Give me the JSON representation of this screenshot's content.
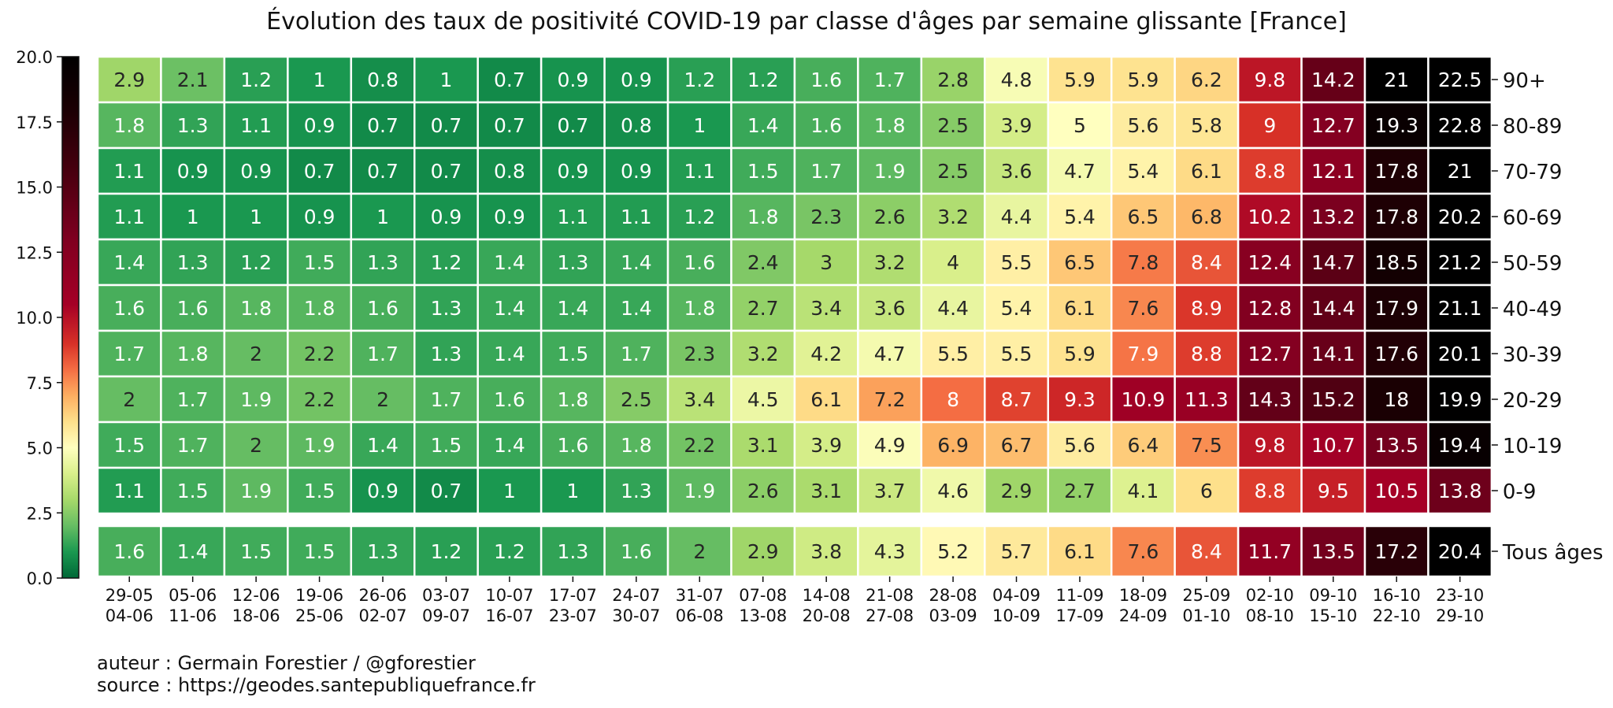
{
  "chart_data": {
    "type": "heatmap",
    "title": "Évolution des taux de positivité COVID-19 par classe d'âges par semaine glissante [France]",
    "x_ticks": [
      [
        "29-05",
        "04-06"
      ],
      [
        "05-06",
        "11-06"
      ],
      [
        "12-06",
        "18-06"
      ],
      [
        "19-06",
        "25-06"
      ],
      [
        "26-06",
        "02-07"
      ],
      [
        "03-07",
        "09-07"
      ],
      [
        "10-07",
        "16-07"
      ],
      [
        "17-07",
        "23-07"
      ],
      [
        "24-07",
        "30-07"
      ],
      [
        "31-07",
        "06-08"
      ],
      [
        "07-08",
        "13-08"
      ],
      [
        "14-08",
        "20-08"
      ],
      [
        "21-08",
        "27-08"
      ],
      [
        "28-08",
        "03-09"
      ],
      [
        "04-09",
        "10-09"
      ],
      [
        "11-09",
        "17-09"
      ],
      [
        "18-09",
        "24-09"
      ],
      [
        "25-09",
        "01-10"
      ],
      [
        "02-10",
        "08-10"
      ],
      [
        "09-10",
        "15-10"
      ],
      [
        "16-10",
        "22-10"
      ],
      [
        "23-10",
        "29-10"
      ]
    ],
    "rows": [
      {
        "label": "90+",
        "values": [
          2.9,
          2.1,
          1.2,
          1,
          0.8,
          1,
          0.7,
          0.9,
          0.9,
          1.2,
          1.2,
          1.6,
          1.7,
          2.8,
          4.8,
          5.9,
          5.9,
          6.2,
          9.8,
          14.2,
          21,
          22.5
        ]
      },
      {
        "label": "80-89",
        "values": [
          1.8,
          1.3,
          1.1,
          0.9,
          0.7,
          0.7,
          0.7,
          0.7,
          0.8,
          1,
          1.4,
          1.6,
          1.8,
          2.5,
          3.9,
          5,
          5.6,
          5.8,
          9,
          12.7,
          19.3,
          22.8
        ]
      },
      {
        "label": "70-79",
        "values": [
          1.1,
          0.9,
          0.9,
          0.7,
          0.7,
          0.7,
          0.8,
          0.9,
          0.9,
          1.1,
          1.5,
          1.7,
          1.9,
          2.5,
          3.6,
          4.7,
          5.4,
          6.1,
          8.8,
          12.1,
          17.8,
          21
        ]
      },
      {
        "label": "60-69",
        "values": [
          1.1,
          1,
          1,
          0.9,
          1,
          0.9,
          0.9,
          1.1,
          1.1,
          1.2,
          1.8,
          2.3,
          2.6,
          3.2,
          4.4,
          5.4,
          6.5,
          6.8,
          10.2,
          13.2,
          17.8,
          20.2
        ]
      },
      {
        "label": "50-59",
        "values": [
          1.4,
          1.3,
          1.2,
          1.5,
          1.3,
          1.2,
          1.4,
          1.3,
          1.4,
          1.6,
          2.4,
          3,
          3.2,
          4,
          5.5,
          6.5,
          7.8,
          8.4,
          12.4,
          14.7,
          18.5,
          21.2
        ]
      },
      {
        "label": "40-49",
        "values": [
          1.6,
          1.6,
          1.8,
          1.8,
          1.6,
          1.3,
          1.4,
          1.4,
          1.4,
          1.8,
          2.7,
          3.4,
          3.6,
          4.4,
          5.4,
          6.1,
          7.6,
          8.9,
          12.8,
          14.4,
          17.9,
          21.1
        ]
      },
      {
        "label": "30-39",
        "values": [
          1.7,
          1.8,
          2,
          2.2,
          1.7,
          1.3,
          1.4,
          1.5,
          1.7,
          2.3,
          3.2,
          4.2,
          4.7,
          5.5,
          5.5,
          5.9,
          7.9,
          8.8,
          12.7,
          14.1,
          17.6,
          20.1
        ]
      },
      {
        "label": "20-29",
        "values": [
          2,
          1.7,
          1.9,
          2.2,
          2,
          1.7,
          1.6,
          1.8,
          2.5,
          3.4,
          4.5,
          6.1,
          7.2,
          8,
          8.7,
          9.3,
          10.9,
          11.3,
          14.3,
          15.2,
          18,
          19.9
        ]
      },
      {
        "label": "10-19",
        "values": [
          1.5,
          1.7,
          2,
          1.9,
          1.4,
          1.5,
          1.4,
          1.6,
          1.8,
          2.2,
          3.1,
          3.9,
          4.9,
          6.9,
          6.7,
          5.6,
          6.4,
          7.5,
          9.8,
          10.7,
          13.5,
          19.4
        ]
      },
      {
        "label": "0-9",
        "values": [
          1.1,
          1.5,
          1.9,
          1.5,
          0.9,
          0.7,
          1,
          1,
          1.3,
          1.9,
          2.6,
          3.1,
          3.7,
          4.6,
          2.9,
          2.7,
          4.1,
          6,
          8.8,
          9.5,
          10.5,
          13.8
        ]
      }
    ],
    "total_row": {
      "label": "Tous âges",
      "values": [
        1.6,
        1.4,
        1.5,
        1.5,
        1.3,
        1.2,
        1.2,
        1.3,
        1.6,
        2,
        2.9,
        3.8,
        4.3,
        5.2,
        5.7,
        6.1,
        7.6,
        8.4,
        11.7,
        13.5,
        17.2,
        20.4
      ]
    },
    "colorbar": {
      "range": [
        0,
        20
      ],
      "ticks": [
        "0.0",
        "2.5",
        "5.0",
        "7.5",
        "10.0",
        "12.5",
        "15.0",
        "17.5",
        "20.0"
      ],
      "colormap": "RdYlGn_r then dark",
      "stops": [
        [
          0.0,
          "#006837"
        ],
        [
          0.1,
          "#1a9850"
        ],
        [
          0.2,
          "#66bd63"
        ],
        [
          0.3,
          "#a6d96a"
        ],
        [
          0.4,
          "#d9ef8b"
        ],
        [
          0.5,
          "#ffffbf"
        ],
        [
          0.6,
          "#fee08b"
        ],
        [
          0.7,
          "#fdae61"
        ],
        [
          0.8,
          "#f46d43"
        ],
        [
          0.9,
          "#d73027"
        ],
        [
          1.05,
          "#a50026"
        ],
        [
          1.3,
          "#7f0020"
        ],
        [
          1.55,
          "#4a0010"
        ],
        [
          1.8,
          "#1a0003"
        ],
        [
          2.0,
          "#000000"
        ]
      ],
      "scale_max": 20
    }
  },
  "footer": {
    "author": "auteur : Germain Forestier / @gforestier",
    "source": "source : https://geodes.santepubliquefrance.fr"
  }
}
